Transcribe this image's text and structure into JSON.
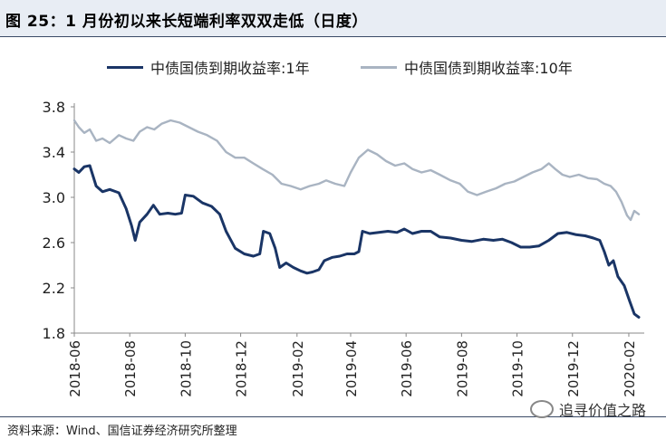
{
  "header": {
    "title": "图 25：1 月份初以来长短端利率双双走低（日度）"
  },
  "colors": {
    "series_1y": "#1a3566",
    "series_10y": "#a9b4c2",
    "header_bg": "#e8edf4"
  },
  "footer": {
    "source": "资料来源：Wind、国信证券经济研究所整理",
    "watermark": "追寻价值之路",
    "watermark_icon": "wechat-icon"
  },
  "chart_data": {
    "type": "line",
    "title": "",
    "xlabel": "",
    "ylabel": "",
    "ylim": [
      1.8,
      3.8
    ],
    "yticks": [
      "3.8",
      "3.4",
      "3.0",
      "2.6",
      "2.2",
      "1.8"
    ],
    "ytick_values": [
      3.8,
      3.4,
      3.0,
      2.6,
      2.2,
      1.8
    ],
    "xticks": [
      "2018-06",
      "2018-08",
      "2018-10",
      "2018-12",
      "2019-02",
      "2019-04",
      "2019-06",
      "2019-08",
      "2019-10",
      "2019-12",
      "2020-02"
    ],
    "xlim": [
      "2018-06-01",
      "2020-02-12"
    ],
    "grid": false,
    "legend_position": "top",
    "series": [
      {
        "name": "中债国债到期收益率:1年",
        "points": [
          [
            "2018-06-01",
            3.25
          ],
          [
            "2018-06-06",
            3.22
          ],
          [
            "2018-06-12",
            3.27
          ],
          [
            "2018-06-18",
            3.28
          ],
          [
            "2018-06-25",
            3.1
          ],
          [
            "2018-07-02",
            3.05
          ],
          [
            "2018-07-10",
            3.07
          ],
          [
            "2018-07-20",
            3.04
          ],
          [
            "2018-07-28",
            2.9
          ],
          [
            "2018-08-03",
            2.75
          ],
          [
            "2018-08-07",
            2.62
          ],
          [
            "2018-08-12",
            2.78
          ],
          [
            "2018-08-20",
            2.85
          ],
          [
            "2018-08-27",
            2.93
          ],
          [
            "2018-09-03",
            2.85
          ],
          [
            "2018-09-12",
            2.86
          ],
          [
            "2018-09-20",
            2.85
          ],
          [
            "2018-09-27",
            2.86
          ],
          [
            "2018-10-01",
            3.02
          ],
          [
            "2018-10-10",
            3.01
          ],
          [
            "2018-10-20",
            2.95
          ],
          [
            "2018-10-30",
            2.92
          ],
          [
            "2018-11-08",
            2.85
          ],
          [
            "2018-11-15",
            2.7
          ],
          [
            "2018-11-25",
            2.55
          ],
          [
            "2018-12-05",
            2.5
          ],
          [
            "2018-12-15",
            2.48
          ],
          [
            "2018-12-22",
            2.5
          ],
          [
            "2018-12-26",
            2.7
          ],
          [
            "2019-01-02",
            2.68
          ],
          [
            "2019-01-08",
            2.55
          ],
          [
            "2019-01-13",
            2.38
          ],
          [
            "2019-01-20",
            2.42
          ],
          [
            "2019-01-28",
            2.38
          ],
          [
            "2019-02-05",
            2.35
          ],
          [
            "2019-02-12",
            2.33
          ],
          [
            "2019-02-18",
            2.34
          ],
          [
            "2019-02-25",
            2.36
          ],
          [
            "2019-03-03",
            2.44
          ],
          [
            "2019-03-12",
            2.47
          ],
          [
            "2019-03-20",
            2.48
          ],
          [
            "2019-03-28",
            2.5
          ],
          [
            "2019-04-05",
            2.5
          ],
          [
            "2019-04-10",
            2.52
          ],
          [
            "2019-04-14",
            2.7
          ],
          [
            "2019-04-22",
            2.68
          ],
          [
            "2019-05-02",
            2.69
          ],
          [
            "2019-05-12",
            2.7
          ],
          [
            "2019-05-22",
            2.69
          ],
          [
            "2019-05-30",
            2.72
          ],
          [
            "2019-06-08",
            2.68
          ],
          [
            "2019-06-18",
            2.7
          ],
          [
            "2019-06-28",
            2.7
          ],
          [
            "2019-07-08",
            2.65
          ],
          [
            "2019-07-20",
            2.64
          ],
          [
            "2019-08-01",
            2.62
          ],
          [
            "2019-08-12",
            2.61
          ],
          [
            "2019-08-25",
            2.63
          ],
          [
            "2019-09-05",
            2.62
          ],
          [
            "2019-09-15",
            2.63
          ],
          [
            "2019-09-25",
            2.6
          ],
          [
            "2019-10-05",
            2.56
          ],
          [
            "2019-10-15",
            2.56
          ],
          [
            "2019-10-25",
            2.57
          ],
          [
            "2019-11-05",
            2.62
          ],
          [
            "2019-11-15",
            2.68
          ],
          [
            "2019-11-25",
            2.69
          ],
          [
            "2019-12-05",
            2.67
          ],
          [
            "2019-12-15",
            2.66
          ],
          [
            "2019-12-24",
            2.64
          ],
          [
            "2019-12-31",
            2.62
          ],
          [
            "2020-01-05",
            2.52
          ],
          [
            "2020-01-10",
            2.4
          ],
          [
            "2020-01-15",
            2.44
          ],
          [
            "2020-01-20",
            2.3
          ],
          [
            "2020-01-27",
            2.22
          ],
          [
            "2020-02-02",
            2.08
          ],
          [
            "2020-02-07",
            1.97
          ],
          [
            "2020-02-12",
            1.94
          ]
        ]
      },
      {
        "name": "中债国债到期收益率:10年",
        "points": [
          [
            "2018-06-01",
            3.68
          ],
          [
            "2018-06-06",
            3.62
          ],
          [
            "2018-06-12",
            3.57
          ],
          [
            "2018-06-18",
            3.6
          ],
          [
            "2018-06-25",
            3.5
          ],
          [
            "2018-07-02",
            3.52
          ],
          [
            "2018-07-10",
            3.48
          ],
          [
            "2018-07-20",
            3.55
          ],
          [
            "2018-07-28",
            3.52
          ],
          [
            "2018-08-05",
            3.5
          ],
          [
            "2018-08-12",
            3.58
          ],
          [
            "2018-08-20",
            3.62
          ],
          [
            "2018-08-28",
            3.6
          ],
          [
            "2018-09-05",
            3.65
          ],
          [
            "2018-09-15",
            3.68
          ],
          [
            "2018-09-25",
            3.66
          ],
          [
            "2018-10-05",
            3.62
          ],
          [
            "2018-10-15",
            3.58
          ],
          [
            "2018-10-25",
            3.55
          ],
          [
            "2018-11-05",
            3.5
          ],
          [
            "2018-11-15",
            3.4
          ],
          [
            "2018-11-25",
            3.35
          ],
          [
            "2018-12-05",
            3.35
          ],
          [
            "2018-12-15",
            3.3
          ],
          [
            "2018-12-25",
            3.25
          ],
          [
            "2019-01-05",
            3.2
          ],
          [
            "2019-01-15",
            3.12
          ],
          [
            "2019-01-25",
            3.1
          ],
          [
            "2019-02-05",
            3.07
          ],
          [
            "2019-02-15",
            3.1
          ],
          [
            "2019-02-25",
            3.12
          ],
          [
            "2019-03-05",
            3.15
          ],
          [
            "2019-03-15",
            3.12
          ],
          [
            "2019-03-25",
            3.1
          ],
          [
            "2019-04-01",
            3.22
          ],
          [
            "2019-04-10",
            3.35
          ],
          [
            "2019-04-20",
            3.42
          ],
          [
            "2019-04-30",
            3.38
          ],
          [
            "2019-05-10",
            3.32
          ],
          [
            "2019-05-20",
            3.28
          ],
          [
            "2019-05-30",
            3.3
          ],
          [
            "2019-06-08",
            3.25
          ],
          [
            "2019-06-18",
            3.22
          ],
          [
            "2019-06-28",
            3.24
          ],
          [
            "2019-07-08",
            3.2
          ],
          [
            "2019-07-20",
            3.15
          ],
          [
            "2019-07-30",
            3.12
          ],
          [
            "2019-08-08",
            3.05
          ],
          [
            "2019-08-18",
            3.02
          ],
          [
            "2019-08-28",
            3.05
          ],
          [
            "2019-09-08",
            3.08
          ],
          [
            "2019-09-18",
            3.12
          ],
          [
            "2019-09-28",
            3.14
          ],
          [
            "2019-10-08",
            3.18
          ],
          [
            "2019-10-18",
            3.22
          ],
          [
            "2019-10-28",
            3.25
          ],
          [
            "2019-11-05",
            3.3
          ],
          [
            "2019-11-12",
            3.25
          ],
          [
            "2019-11-20",
            3.2
          ],
          [
            "2019-11-28",
            3.18
          ],
          [
            "2019-12-08",
            3.2
          ],
          [
            "2019-12-18",
            3.17
          ],
          [
            "2019-12-28",
            3.16
          ],
          [
            "2020-01-05",
            3.12
          ],
          [
            "2020-01-12",
            3.1
          ],
          [
            "2020-01-18",
            3.05
          ],
          [
            "2020-01-24",
            2.96
          ],
          [
            "2020-01-30",
            2.84
          ],
          [
            "2020-02-03",
            2.8
          ],
          [
            "2020-02-07",
            2.88
          ],
          [
            "2020-02-12",
            2.85
          ]
        ]
      }
    ]
  }
}
